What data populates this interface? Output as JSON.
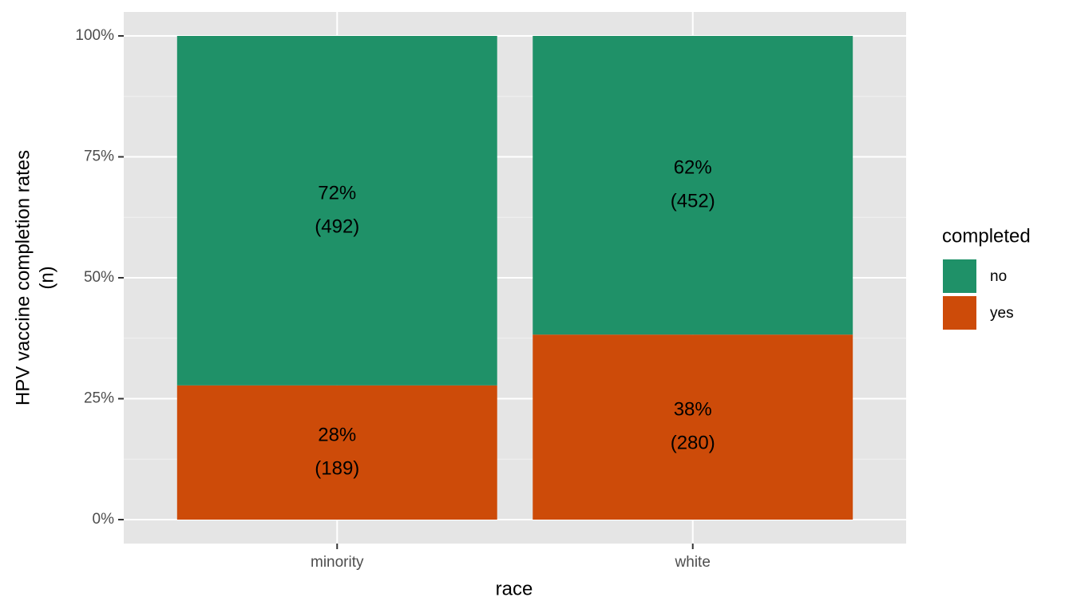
{
  "chart_data": {
    "type": "stacked_bar",
    "x_label": "race",
    "y_label": [
      "HPV vaccine completion rates",
      "(n)"
    ],
    "categories": [
      "minority",
      "white"
    ],
    "series": [
      {
        "name": "no",
        "color": "#1f9168",
        "values": [
          72.25,
          61.75
        ],
        "value_labels": [
          "72%",
          "62%"
        ],
        "count_labels": [
          "(492)",
          "(452)"
        ]
      },
      {
        "name": "yes",
        "color": "#cd4b09",
        "values": [
          27.75,
          38.25
        ],
        "value_labels": [
          "28%",
          "38%"
        ],
        "count_labels": [
          "(189)",
          "(280)"
        ]
      }
    ],
    "ylim": [
      -4.95,
      104.95
    ],
    "yticks": [
      {
        "value": 0,
        "label": "0%"
      },
      {
        "value": 25,
        "label": "25%"
      },
      {
        "value": 50,
        "label": "50%"
      },
      {
        "value": 75,
        "label": "75%"
      },
      {
        "value": 100,
        "label": "100%"
      }
    ],
    "grid": true,
    "legend_title": "completed",
    "legend_position": "right"
  }
}
